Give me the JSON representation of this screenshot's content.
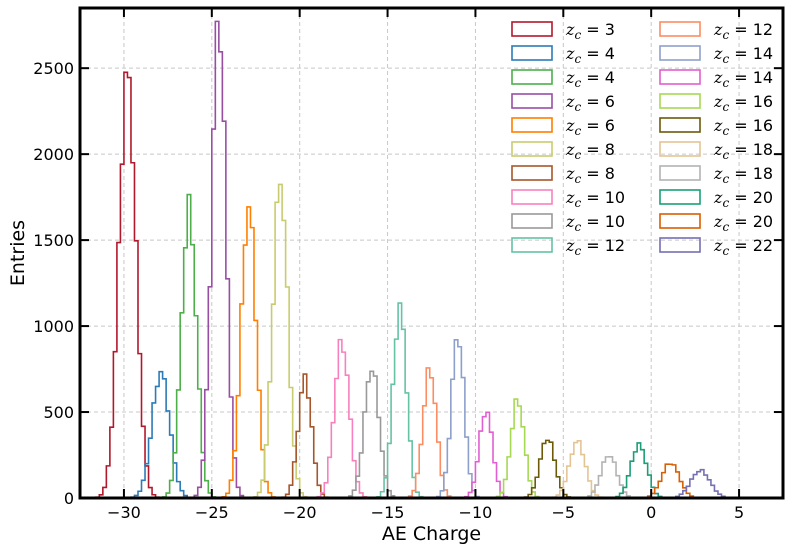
{
  "chart_data": {
    "type": "histogram",
    "xlabel": "AE Charge",
    "ylabel": "Entries",
    "xlim": [
      -32.5,
      7.5
    ],
    "ylim": [
      0,
      2850
    ],
    "xticks": [
      -30,
      -25,
      -20,
      -15,
      -10,
      -5,
      0,
      5
    ],
    "xtick_labels": [
      "−30",
      "−25",
      "−20",
      "−15",
      "−10",
      "−5",
      "0",
      "5"
    ],
    "yticks": [
      0,
      500,
      1000,
      1500,
      2000,
      2500
    ],
    "ytick_labels": [
      "0",
      "500",
      "1000",
      "1500",
      "2000",
      "2500"
    ],
    "grid": true,
    "legend_position": "top-right",
    "legend_columns": 2,
    "bin_width": 0.2,
    "series": [
      {
        "name": "3",
        "color": "#b2182b",
        "mean": -29.8,
        "sigma": 0.48,
        "peak": 2470
      },
      {
        "name": "4",
        "color": "#2c7bb6",
        "mean": -27.9,
        "sigma": 0.5,
        "peak": 730
      },
      {
        "name": "4",
        "color": "#4daf4a",
        "mean": -26.3,
        "sigma": 0.42,
        "peak": 1690
      },
      {
        "name": "6",
        "color": "#984ea3",
        "mean": -24.6,
        "sigma": 0.4,
        "peak": 2800
      },
      {
        "name": "6",
        "color": "#ff7f00",
        "mean": -22.9,
        "sigma": 0.42,
        "peak": 1700
      },
      {
        "name": "8",
        "color": "#c8cc6e",
        "mean": -21.1,
        "sigma": 0.42,
        "peak": 1850
      },
      {
        "name": "8",
        "color": "#a6562a",
        "mean": -19.7,
        "sigma": 0.38,
        "peak": 700
      },
      {
        "name": "10",
        "color": "#f781bf",
        "mean": -17.6,
        "sigma": 0.42,
        "peak": 910
      },
      {
        "name": "10",
        "color": "#999999",
        "mean": -15.9,
        "sigma": 0.42,
        "peak": 760
      },
      {
        "name": "12",
        "color": "#66c2a5",
        "mean": -14.3,
        "sigma": 0.38,
        "peak": 1110
      },
      {
        "name": "12",
        "color": "#fc8d62",
        "mean": -12.6,
        "sigma": 0.38,
        "peak": 750
      },
      {
        "name": "14",
        "color": "#8da0cb",
        "mean": -11.0,
        "sigma": 0.36,
        "peak": 950
      },
      {
        "name": "14",
        "color": "#e15fd0",
        "mean": -9.4,
        "sigma": 0.38,
        "peak": 510
      },
      {
        "name": "16",
        "color": "#a6d854",
        "mean": -7.6,
        "sigma": 0.38,
        "peak": 570
      },
      {
        "name": "16",
        "color": "#6b5a0a",
        "mean": -5.9,
        "sigma": 0.42,
        "peak": 350
      },
      {
        "name": "18",
        "color": "#e5c494",
        "mean": -4.2,
        "sigma": 0.45,
        "peak": 330
      },
      {
        "name": "18",
        "color": "#b3b3b3",
        "mean": -2.4,
        "sigma": 0.45,
        "peak": 250
      },
      {
        "name": "20",
        "color": "#1b9e77",
        "mean": -0.7,
        "sigma": 0.45,
        "peak": 310
      },
      {
        "name": "20",
        "color": "#d95f02",
        "mean": 1.1,
        "sigma": 0.5,
        "peak": 205
      },
      {
        "name": "22",
        "color": "#7570b3",
        "mean": 2.8,
        "sigma": 0.55,
        "peak": 160
      }
    ]
  }
}
